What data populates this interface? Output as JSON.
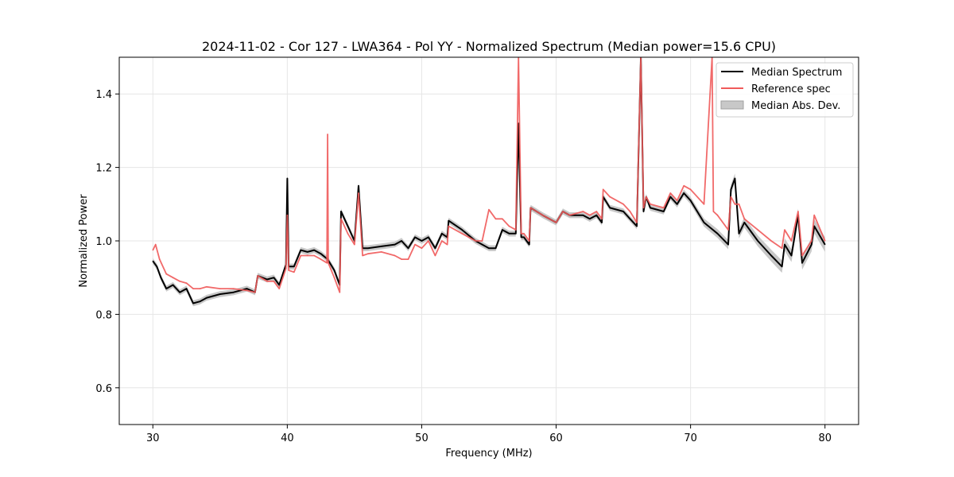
{
  "chart_data": {
    "type": "line",
    "title": "2024-11-02 - Cor 127 - LWA364 - Pol YY - Normalized Spectrum (Median power=15.6 CPU)",
    "xlabel": "Frequency (MHz)",
    "ylabel": "Normalized Power",
    "xlim": [
      27.5,
      82.5
    ],
    "ylim": [
      0.5,
      1.5
    ],
    "xticks": [
      30,
      40,
      50,
      60,
      70,
      80
    ],
    "yticks": [
      0.6,
      0.8,
      1.0,
      1.2,
      1.4
    ],
    "xtick_labels": [
      "30",
      "40",
      "50",
      "60",
      "70",
      "80"
    ],
    "ytick_labels": [
      "0.6",
      "0.8",
      "1.0",
      "1.2",
      "1.4"
    ],
    "grid": true,
    "legend_position": "top-right",
    "series": [
      {
        "name": "Median Spectrum",
        "color": "#000000",
        "x": [
          30,
          30.3,
          30.6,
          31,
          31.5,
          32,
          32.5,
          33,
          33.5,
          34,
          35,
          36,
          37,
          37.6,
          37.8,
          38.5,
          39,
          39.4,
          39.9,
          40.0,
          40.1,
          40.5,
          41,
          41.5,
          42,
          42.5,
          43,
          43.5,
          43.9,
          44.0,
          44.5,
          45,
          45.3,
          45.6,
          46,
          47,
          48,
          48.5,
          49,
          49.5,
          50,
          50.5,
          51,
          51.5,
          51.9,
          52.0,
          53,
          54,
          55,
          55.5,
          56,
          56.5,
          57,
          57.2,
          57.4,
          57.6,
          58,
          58.1,
          59,
          60,
          60.5,
          61,
          62,
          62.5,
          63,
          63.4,
          63.5,
          64,
          65,
          65.5,
          66,
          66.3,
          66.5,
          66.7,
          67,
          68,
          68.5,
          69,
          69.5,
          70,
          71,
          72,
          72.8,
          73.0,
          73.3,
          73.6,
          74,
          75,
          76,
          76.8,
          77,
          77.5,
          78,
          78.3,
          79,
          79.2,
          80
        ],
        "values": [
          0.945,
          0.93,
          0.9,
          0.87,
          0.88,
          0.86,
          0.87,
          0.83,
          0.835,
          0.845,
          0.855,
          0.86,
          0.87,
          0.86,
          0.905,
          0.895,
          0.9,
          0.88,
          0.935,
          1.17,
          0.93,
          0.93,
          0.975,
          0.97,
          0.975,
          0.965,
          0.95,
          0.92,
          0.88,
          1.08,
          1.04,
          1.0,
          1.15,
          0.98,
          0.98,
          0.985,
          0.99,
          1.0,
          0.98,
          1.01,
          1.0,
          1.01,
          0.98,
          1.02,
          1.01,
          1.055,
          1.03,
          1.0,
          0.98,
          0.98,
          1.03,
          1.02,
          1.02,
          1.32,
          1.01,
          1.01,
          0.99,
          1.09,
          1.07,
          1.05,
          1.08,
          1.07,
          1.07,
          1.06,
          1.07,
          1.05,
          1.12,
          1.09,
          1.08,
          1.06,
          1.04,
          1.5,
          1.08,
          1.12,
          1.09,
          1.08,
          1.12,
          1.1,
          1.13,
          1.11,
          1.05,
          1.02,
          0.99,
          1.14,
          1.17,
          1.02,
          1.05,
          1.0,
          0.96,
          0.93,
          0.99,
          0.96,
          1.07,
          0.94,
          0.99,
          1.04,
          0.99
        ]
      },
      {
        "name": "Reference spec",
        "color": "#f05a5a",
        "x": [
          30,
          30.2,
          30.5,
          31,
          31.5,
          32,
          32.5,
          33,
          33.5,
          34,
          35,
          36,
          37,
          37.6,
          37.8,
          38.5,
          39,
          39.4,
          39.9,
          40.0,
          40.1,
          40.5,
          41,
          41.5,
          42,
          42.5,
          42.95,
          43.0,
          43.05,
          43.5,
          43.9,
          44.0,
          44.5,
          45,
          45.3,
          45.6,
          46,
          47,
          48,
          48.5,
          49,
          49.5,
          50,
          50.5,
          51,
          51.5,
          51.9,
          52.0,
          53,
          54,
          54.5,
          55,
          55.5,
          56,
          56.5,
          57,
          57.2,
          57.4,
          57.6,
          58,
          58.1,
          59,
          60,
          60.5,
          61,
          62,
          62.5,
          63,
          63.4,
          63.5,
          64,
          65,
          65.5,
          66,
          66.3,
          66.5,
          66.7,
          67,
          68,
          68.5,
          69,
          69.5,
          70,
          71,
          71.6,
          71.7,
          72,
          72.8,
          73.0,
          73.3,
          73.6,
          74,
          75,
          76,
          76.8,
          77,
          77.5,
          78,
          78.3,
          79,
          79.2,
          80
        ],
        "values": [
          0.975,
          0.99,
          0.95,
          0.91,
          0.9,
          0.89,
          0.885,
          0.87,
          0.87,
          0.875,
          0.87,
          0.87,
          0.865,
          0.86,
          0.905,
          0.89,
          0.89,
          0.87,
          0.925,
          1.07,
          0.92,
          0.915,
          0.96,
          0.96,
          0.96,
          0.95,
          0.94,
          1.29,
          0.94,
          0.9,
          0.86,
          1.06,
          1.02,
          0.99,
          1.13,
          0.96,
          0.965,
          0.97,
          0.96,
          0.95,
          0.95,
          0.99,
          0.98,
          1.0,
          0.96,
          1.0,
          0.99,
          1.04,
          1.02,
          1.0,
          1.0,
          1.085,
          1.06,
          1.06,
          1.04,
          1.03,
          1.5,
          1.02,
          1.02,
          1.0,
          1.09,
          1.07,
          1.05,
          1.08,
          1.07,
          1.08,
          1.07,
          1.08,
          1.06,
          1.14,
          1.12,
          1.1,
          1.08,
          1.05,
          1.5,
          1.09,
          1.12,
          1.1,
          1.09,
          1.13,
          1.11,
          1.15,
          1.14,
          1.1,
          1.5,
          1.08,
          1.07,
          1.03,
          1.12,
          1.1,
          1.1,
          1.06,
          1.03,
          1.0,
          0.98,
          1.03,
          1.0,
          1.08,
          0.96,
          1.0,
          1.07,
          1.0
        ]
      }
    ],
    "bands": [
      {
        "name": "Median Abs. Dev.",
        "color": "#c8c8c8"
      }
    ]
  }
}
